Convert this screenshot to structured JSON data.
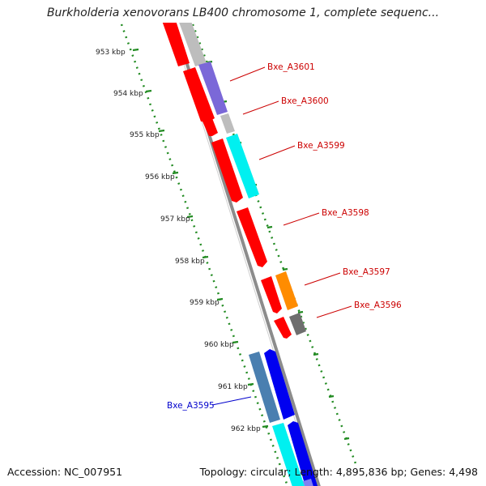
{
  "title": "Burkholderia xenovorans LB400 chromosome 1, complete sequenc...",
  "footer": {
    "accession": "Accession: NC_007951",
    "summary": "Topology: circular; Length: 4,895,836 bp; Genes: 4,498"
  },
  "scale_ticks": [
    "953 kbp",
    "954 kbp",
    "955 kbp",
    "956 kbp",
    "957 kbp",
    "958 kbp",
    "959 kbp",
    "960 kbp",
    "961 kbp",
    "962 kbp"
  ],
  "gene_labels": [
    {
      "name": "Bxe_A3601",
      "color": "#cc0000"
    },
    {
      "name": "Bxe_A3600",
      "color": "#cc0000"
    },
    {
      "name": "Bxe_A3599",
      "color": "#cc0000"
    },
    {
      "name": "Bxe_A3598",
      "color": "#cc0000"
    },
    {
      "name": "Bxe_A3597",
      "color": "#cc0000"
    },
    {
      "name": "Bxe_A3596",
      "color": "#cc0000"
    },
    {
      "name": "Bxe_A3595",
      "color": "#0000cc"
    }
  ],
  "colors": {
    "red": "#ff0000",
    "gray": "#bdbdbd",
    "purple": "#7b68d8",
    "cyan": "#00f0f0",
    "orange": "#ff8c00",
    "darkgray": "#6e6e6e",
    "steelblue": "#4a7fb0",
    "blue": "#0000f0",
    "lavender": "#8080f0",
    "backbone": "#8c8c8c",
    "tick": "#228b22"
  }
}
